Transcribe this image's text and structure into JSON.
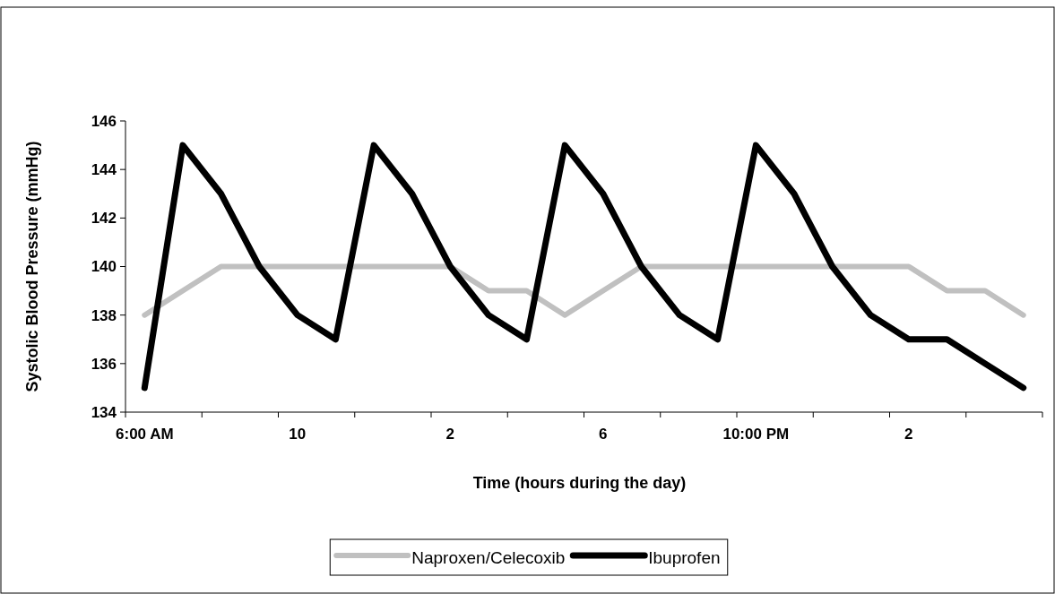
{
  "chart_data": {
    "type": "line",
    "xlabel": "Time (hours during the day)",
    "ylabel": "Systolic Blood Pressure (mmHg)",
    "categories": [
      "6:00 AM",
      null,
      null,
      null,
      "10",
      null,
      null,
      null,
      "2",
      null,
      null,
      null,
      "6",
      null,
      null,
      null,
      "10:00 PM",
      null,
      null,
      null,
      "2",
      null,
      null,
      null
    ],
    "series": [
      {
        "name": "Naproxen/Celecoxib",
        "color": "#c0c0c0",
        "values": [
          138,
          139,
          140,
          140,
          140,
          140,
          140,
          140,
          140,
          139,
          139,
          138,
          139,
          140,
          140,
          140,
          140,
          140,
          140,
          140,
          140,
          139,
          139,
          138
        ]
      },
      {
        "name": "Ibuprofen",
        "color": "#000000",
        "values": [
          135,
          145,
          143,
          140,
          138,
          137,
          145,
          143,
          140,
          138,
          137,
          145,
          143,
          140,
          138,
          137,
          145,
          143,
          140,
          138,
          137,
          137,
          136,
          135
        ]
      }
    ],
    "ylim": [
      134,
      146
    ],
    "yticks": [
      134,
      136,
      138,
      140,
      142,
      144,
      146
    ],
    "legend": "bottom",
    "marker": "none",
    "line_style": "solid",
    "grid": false
  }
}
